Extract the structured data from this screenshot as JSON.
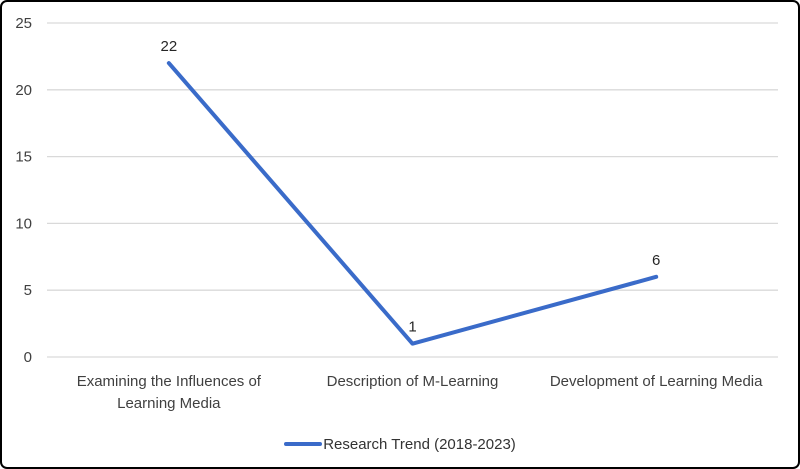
{
  "chart_data": {
    "type": "line",
    "categories": [
      "Examining the Influences of Learning Media",
      "Description of M-Learning",
      "Development of Learning Media"
    ],
    "category_lines": [
      [
        "Examining the Influences of",
        "Learning Media"
      ],
      [
        "Description of M-Learning"
      ],
      [
        "Development of Learning Media"
      ]
    ],
    "series": [
      {
        "name": "Research Trend (2018-2023)",
        "values": [
          22,
          1,
          6
        ],
        "color": "#3A6BC9"
      }
    ],
    "data_labels": [
      "22",
      "1",
      "6"
    ],
    "title": "",
    "xlabel": "",
    "ylabel": "",
    "ylim": [
      0,
      25
    ],
    "yticks": [
      0,
      5,
      10,
      15,
      20,
      25
    ],
    "grid": true,
    "gridline_color": "#D9D9D9",
    "legend_position": "bottom"
  }
}
